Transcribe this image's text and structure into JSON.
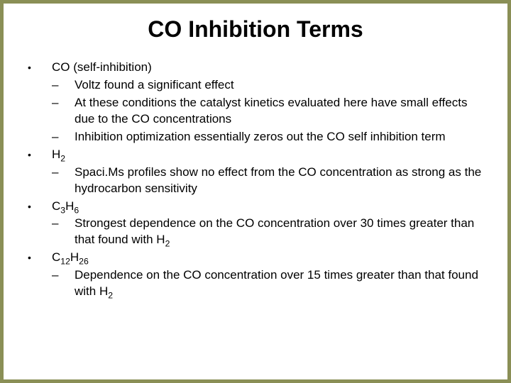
{
  "slide": {
    "title": "CO Inhibition Terms",
    "border_color": "#8a8f56",
    "background_color": "#ffffff",
    "title_fontsize": 32,
    "body_fontsize": 17,
    "bullets": [
      {
        "label": "CO (self-inhibition)",
        "sub": [
          "Voltz found a significant effect",
          "At these conditions the catalyst kinetics evaluated here have small effects due to the CO concentrations",
          "Inhibition optimization essentially zeros out the CO self inhibition term"
        ]
      },
      {
        "label_html": "H<sub>2</sub>",
        "sub": [
          "Spaci.Ms profiles show no effect from the CO concentration as strong as the hydrocarbon sensitivity"
        ]
      },
      {
        "label_html": "C<sub>3</sub>H<sub>6</sub>",
        "sub_html": [
          "Strongest dependence on the CO concentration over 30 times greater than that found with H<sub>2</sub>"
        ]
      },
      {
        "label_html": "C<sub>12</sub>H<sub>26</sub>",
        "sub_html": [
          "Dependence on the CO concentration over 15 times greater than that found with H<sub>2</sub>"
        ]
      }
    ],
    "bullet_marker": "•",
    "dash_marker": "–"
  }
}
